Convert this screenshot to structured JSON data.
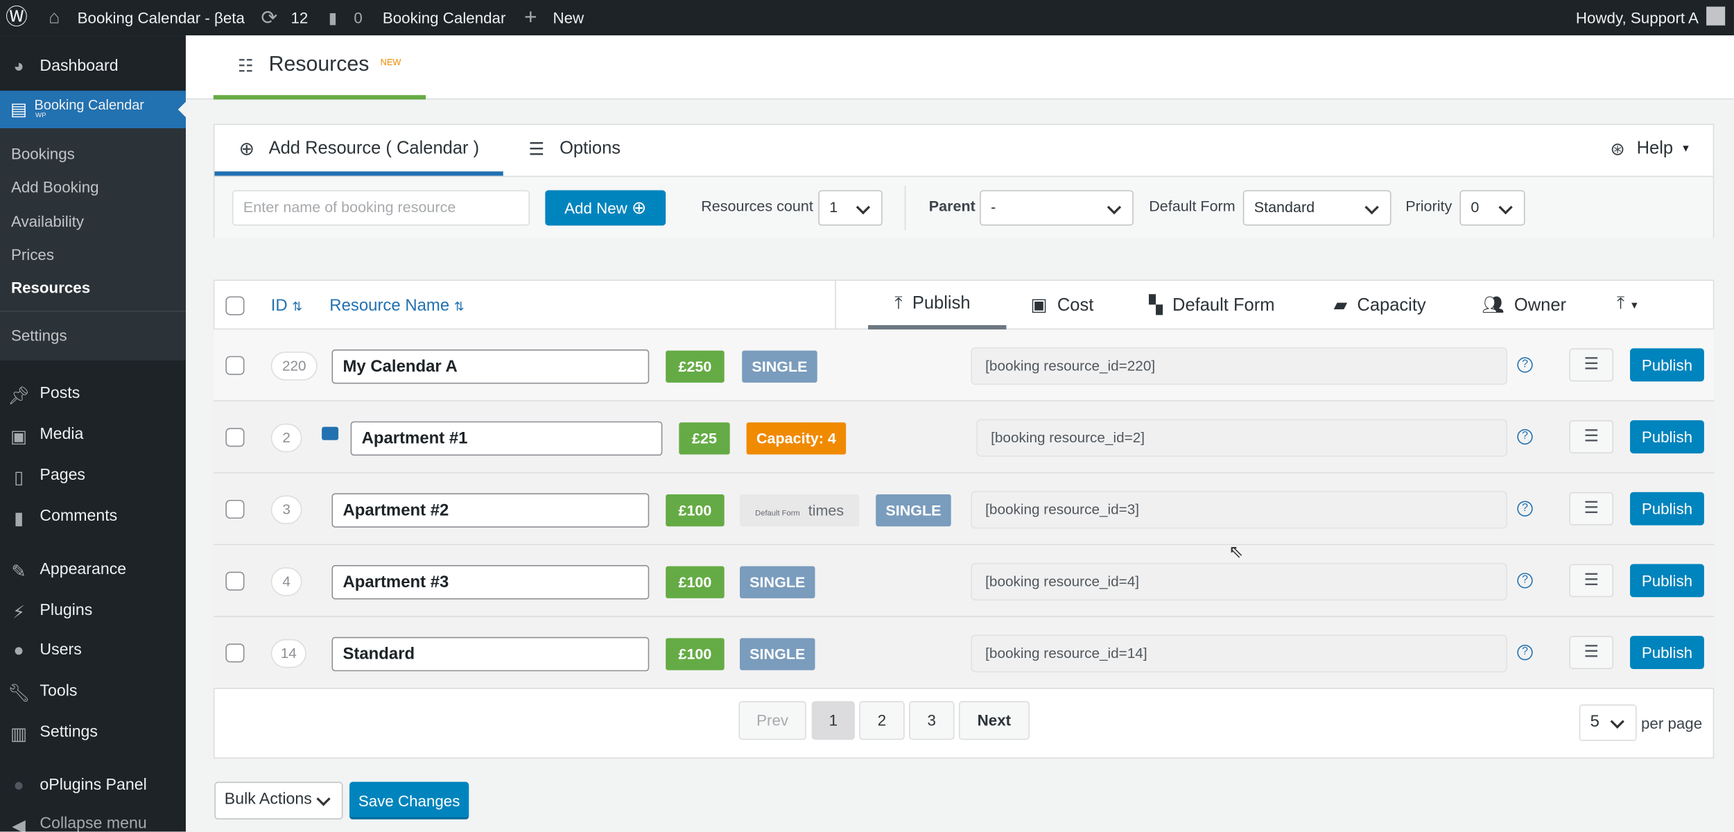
{
  "adminbar": {
    "site": "Booking Calendar - βeta",
    "updates": "12",
    "comments": "0",
    "plugin": "Booking Calendar",
    "new": "New",
    "howdy": "Howdy, Support A"
  },
  "sidebar": {
    "dashboard": "Dashboard",
    "booking_calendar": "Booking Calendar",
    "booking_calendar_sub": "WP",
    "submenu": [
      "Bookings",
      "Add Booking",
      "Availability",
      "Prices",
      "Resources",
      "Settings"
    ],
    "menu": [
      "Posts",
      "Media",
      "Pages",
      "Comments",
      "Appearance",
      "Plugins",
      "Users",
      "Tools",
      "Settings",
      "oPlugins Panel",
      "Collapse menu"
    ]
  },
  "page": {
    "title": "Resources",
    "title_badge": "NEW"
  },
  "toolbar": {
    "tab_add": "Add Resource ( Calendar )",
    "tab_options": "Options",
    "help": "Help",
    "name_placeholder": "Enter name of booking resource",
    "add_new": "Add New",
    "count_label": "Resources count",
    "count_value": "1",
    "parent_label": "Parent",
    "parent_value": "-",
    "form_label": "Default Form",
    "form_value": "Standard",
    "priority_label": "Priority",
    "priority_value": "0"
  },
  "table": {
    "col_id": "ID",
    "col_name": "Resource Name",
    "view_tabs": [
      "Publish",
      "Cost",
      "Default Form",
      "Capacity",
      "Owner"
    ],
    "rows": [
      {
        "id": "220",
        "name": "My Calendar A",
        "price": "£250",
        "type": "SINGLE",
        "shortcode": "[booking resource_id=220]",
        "publish": "Publish"
      },
      {
        "id": "2",
        "name": "Apartment #1",
        "price": "£25",
        "type": "Capacity: 4",
        "shortcode": "[booking resource_id=2]",
        "publish": "Publish"
      },
      {
        "id": "3",
        "name": "Apartment #2",
        "price": "£100",
        "form_small": "Default Form",
        "form_name": "times",
        "type": "SINGLE",
        "shortcode": "[booking resource_id=3]",
        "publish": "Publish"
      },
      {
        "id": "4",
        "name": "Apartment #3",
        "price": "£100",
        "type": "SINGLE",
        "shortcode": "[booking resource_id=4]",
        "publish": "Publish"
      },
      {
        "id": "14",
        "name": "Standard",
        "price": "£100",
        "type": "SINGLE",
        "shortcode": "[booking resource_id=14]",
        "publish": "Publish"
      }
    ]
  },
  "pagination": {
    "prev": "Prev",
    "pages": [
      "1",
      "2",
      "3"
    ],
    "current": "1",
    "next": "Next",
    "per_page_value": "5",
    "per_page_label": "per page"
  },
  "footer": {
    "bulk": "Bulk Actions",
    "save": "Save Changes"
  },
  "colors": {
    "accent": "#2271b1",
    "button": "#0084bd",
    "price": "#65ab45",
    "single": "#7a9cbd",
    "capacity": "#f08a00",
    "tab_green": "#65ab45"
  }
}
